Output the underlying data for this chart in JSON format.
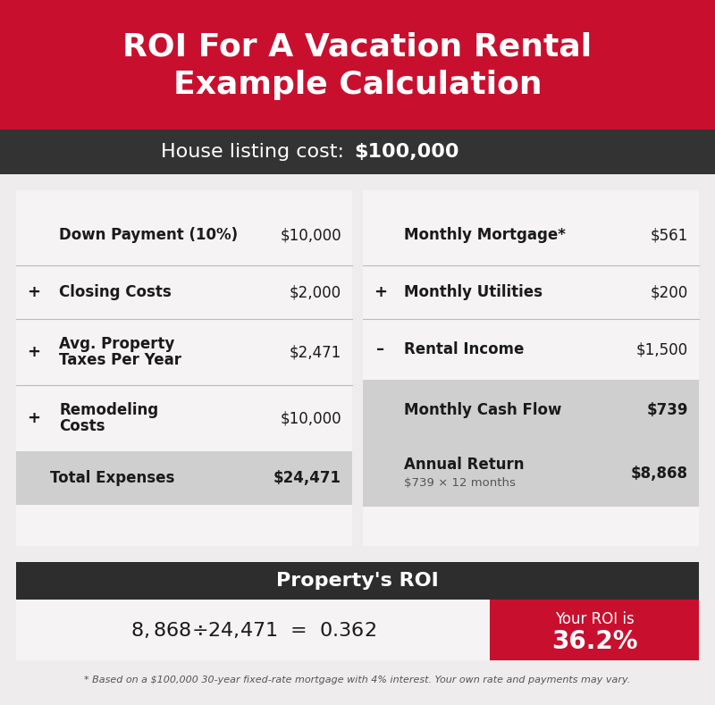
{
  "title_line1": "ROI For A Vacation Rental",
  "title_line2": "Example Calculation",
  "title_bg": "#c8102e",
  "title_text_color": "#ffffff",
  "subtitle_normal": "House listing cost: ",
  "subtitle_bold": "$100,000",
  "subtitle_bg": "#333333",
  "subtitle_text_color": "#ffffff",
  "body_bg": "#eeecec",
  "panel_bg": "#f5f3f3",
  "gray_bg": "#d0cfcf",
  "divider_color": "#bbbbbb",
  "left_rows": [
    {
      "symbol": "",
      "label": "Down Payment (10%)",
      "value": "$10,000"
    },
    {
      "symbol": "+",
      "label": "Closing Costs",
      "value": "$2,000"
    },
    {
      "symbol": "+",
      "label": "Avg. Property\nTaxes Per Year",
      "value": "$2,471"
    },
    {
      "symbol": "+",
      "label": "Remodeling\nCosts",
      "value": "$10,000"
    }
  ],
  "left_total_label": "Total Expenses",
  "left_total_value": "$24,471",
  "right_rows": [
    {
      "symbol": "",
      "label": "Monthly Mortgage*",
      "value": "$561"
    },
    {
      "symbol": "+",
      "label": "Monthly Utilities",
      "value": "$200"
    },
    {
      "symbol": "–",
      "label": "Rental Income",
      "value": "$1,500"
    }
  ],
  "right_cf_label": "Monthly Cash Flow",
  "right_cf_value": "$739",
  "right_ar_label": "Annual Return",
  "right_ar_sub": "$739 × 12 months",
  "right_ar_value": "$8,868",
  "roi_bar_bg": "#2d2d2d",
  "roi_bar_label": "Property's ROI",
  "roi_formula": "$8,868  ÷  $24,471  =  0.362",
  "roi_result_bg": "#c8102e",
  "roi_result_line1": "Your ROI is",
  "roi_result_line2": "36.2%",
  "footer": "* Based on a $100,000 30-year fixed-rate mortgage with 4% interest. Your own rate and payments may vary."
}
